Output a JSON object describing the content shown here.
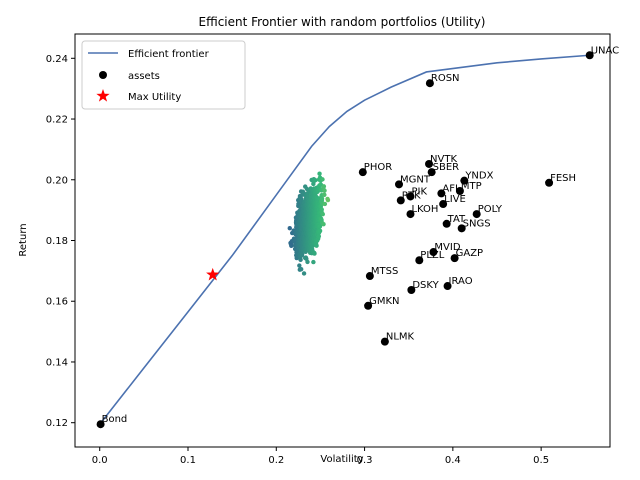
{
  "chart_data": {
    "type": "scatter",
    "title": "Efficient Frontier with random portfolios (Utility)",
    "xlabel": "Volatility",
    "ylabel": "Return",
    "xlim": [
      -0.028,
      0.578
    ],
    "ylim": [
      0.112,
      0.248
    ],
    "grid": false,
    "legend_position": "top-left",
    "x_ticks": [
      0.0,
      0.1,
      0.2,
      0.3,
      0.4,
      0.5
    ],
    "x_tick_labels": [
      "0.0",
      "0.1",
      "0.2",
      "0.3",
      "0.4",
      "0.5"
    ],
    "y_ticks": [
      0.12,
      0.14,
      0.16,
      0.18,
      0.2,
      0.22,
      0.24
    ],
    "y_tick_labels": [
      "0.12",
      "0.14",
      "0.16",
      "0.18",
      "0.20",
      "0.22",
      "0.24"
    ],
    "legend": [
      "Efficient frontier",
      "assets",
      "Max Utility"
    ],
    "colors": {
      "frontier": "#4c72b0",
      "assets": "#000000",
      "max_utility": "#ff0000",
      "colormap": [
        "#440154",
        "#31688e",
        "#35b779",
        "#fde725"
      ]
    },
    "frontier": [
      [
        0.0,
        0.1195
      ],
      [
        0.05,
        0.138
      ],
      [
        0.1,
        0.1565
      ],
      [
        0.15,
        0.175
      ],
      [
        0.2,
        0.195
      ],
      [
        0.24,
        0.211
      ],
      [
        0.26,
        0.2175
      ],
      [
        0.28,
        0.2225
      ],
      [
        0.3,
        0.2262
      ],
      [
        0.33,
        0.2305
      ],
      [
        0.37,
        0.2355
      ],
      [
        0.45,
        0.2385
      ],
      [
        0.5,
        0.2398
      ],
      [
        0.555,
        0.241
      ]
    ],
    "assets": [
      {
        "name": "Bond",
        "x": 0.001,
        "y": 0.1195
      },
      {
        "name": "UNAC",
        "x": 0.555,
        "y": 0.241
      },
      {
        "name": "ROSN",
        "x": 0.374,
        "y": 0.2318
      },
      {
        "name": "NVTK",
        "x": 0.373,
        "y": 0.2052
      },
      {
        "name": "SBER",
        "x": 0.376,
        "y": 0.2025
      },
      {
        "name": "PHOR",
        "x": 0.298,
        "y": 0.2025
      },
      {
        "name": "YNDX",
        "x": 0.413,
        "y": 0.1997
      },
      {
        "name": "MGNT",
        "x": 0.339,
        "y": 0.1985
      },
      {
        "name": "FESH",
        "x": 0.509,
        "y": 0.199
      },
      {
        "name": "MTP",
        "x": 0.408,
        "y": 0.1963
      },
      {
        "name": "AFL",
        "x": 0.387,
        "y": 0.1955
      },
      {
        "name": "PIK",
        "x": 0.352,
        "y": 0.1945
      },
      {
        "name": "RTK",
        "x": 0.341,
        "y": 0.1932
      },
      {
        "name": "LIVE",
        "x": 0.389,
        "y": 0.192
      },
      {
        "name": "LKOH",
        "x": 0.352,
        "y": 0.1887
      },
      {
        "name": "POLY",
        "x": 0.427,
        "y": 0.1887
      },
      {
        "name": "TAT",
        "x": 0.393,
        "y": 0.1855
      },
      {
        "name": "SNGS",
        "x": 0.41,
        "y": 0.184
      },
      {
        "name": "MVID",
        "x": 0.378,
        "y": 0.1762
      },
      {
        "name": "PLZL",
        "x": 0.362,
        "y": 0.1735
      },
      {
        "name": "GAZP",
        "x": 0.402,
        "y": 0.1742
      },
      {
        "name": "MTSS",
        "x": 0.306,
        "y": 0.1683
      },
      {
        "name": "IRAO",
        "x": 0.394,
        "y": 0.165
      },
      {
        "name": "DSKY",
        "x": 0.353,
        "y": 0.1637
      },
      {
        "name": "GMKN",
        "x": 0.304,
        "y": 0.1585
      },
      {
        "name": "NLMK",
        "x": 0.323,
        "y": 0.1467
      }
    ],
    "max_utility": {
      "x": 0.128,
      "y": 0.1687
    },
    "random_portfolios": {
      "count": 1200,
      "x_range": [
        0.17,
        0.29
      ],
      "y_range": [
        0.167,
        0.205
      ],
      "note_color_axis": "volatility"
    }
  }
}
